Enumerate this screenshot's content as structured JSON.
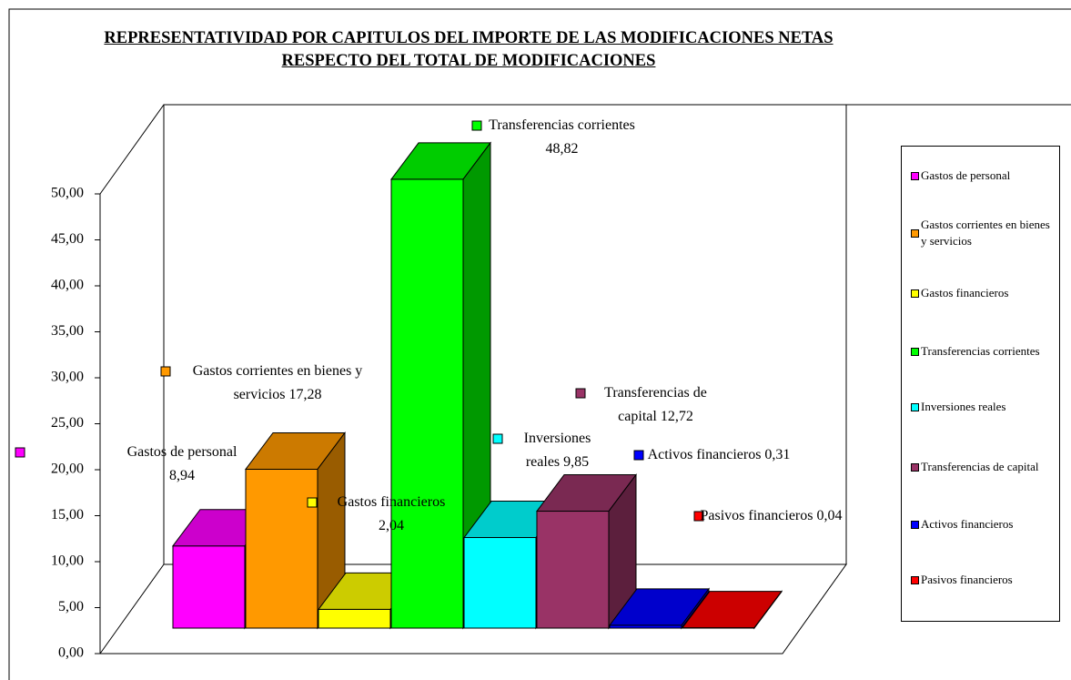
{
  "chart_data": {
    "type": "bar",
    "title": "REPRESENTATIVIDAD POR CAPITULOS DEL IMPORTE DE LAS MODIFICACIONES NETAS RESPECTO DEL TOTAL DE MODIFICACIONES",
    "categories": [
      "Gastos de personal",
      "Gastos corrientes en bienes y servicios",
      "Gastos financieros",
      "Transferencias corrientes",
      "Inversiones reales",
      "Transferencias de capital",
      "Activos financieros",
      "Pasivos financieros"
    ],
    "values": [
      8.94,
      17.28,
      2.04,
      48.82,
      9.85,
      12.72,
      0.31,
      0.04
    ],
    "value_labels": [
      "8,94",
      "17,28",
      "2,04",
      "48,82",
      "9,85",
      "12,72",
      "0,31",
      "0,04"
    ],
    "colors": [
      "#ff00ff",
      "#ff9900",
      "#ffff00",
      "#00ff00",
      "#00ffff",
      "#993366",
      "#0000ff",
      "#ff0000"
    ],
    "ylim": [
      0,
      50
    ],
    "yticks": [
      {
        "value": 0,
        "label": "0,00"
      },
      {
        "value": 5,
        "label": "5,00"
      },
      {
        "value": 10,
        "label": "10,00"
      },
      {
        "value": 15,
        "label": "15,00"
      },
      {
        "value": 20,
        "label": "20,00"
      },
      {
        "value": 25,
        "label": "25,00"
      },
      {
        "value": 30,
        "label": "30,00"
      },
      {
        "value": 35,
        "label": "35,00"
      },
      {
        "value": 40,
        "label": "40,00"
      },
      {
        "value": 45,
        "label": "45,00"
      },
      {
        "value": 50,
        "label": "50,00"
      }
    ],
    "legend": "right"
  }
}
